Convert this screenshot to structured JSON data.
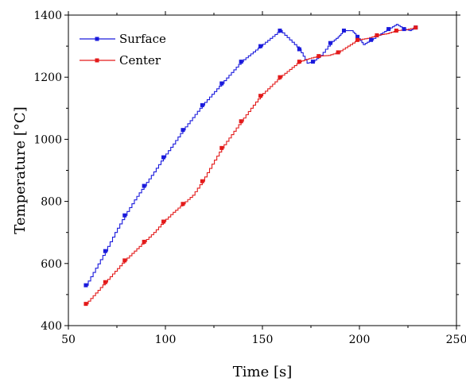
{
  "chart_data": {
    "type": "line",
    "title": "",
    "xlabel": "Time [s]",
    "ylabel": "Temperature [°C]",
    "xlim": [
      50,
      250
    ],
    "ylim": [
      400,
      1400
    ],
    "x_ticks": [
      50,
      100,
      150,
      200,
      250
    ],
    "y_ticks": [
      400,
      600,
      800,
      1000,
      1200,
      1400
    ],
    "grid": false,
    "legend_position": "top-left",
    "series": [
      {
        "name": "Surface",
        "color": "#1a1adc",
        "x": [
          59,
          64,
          69,
          74,
          79,
          84,
          89,
          94,
          99,
          104,
          109,
          114,
          119,
          124,
          129,
          134,
          139,
          144,
          149,
          154,
          159,
          164,
          169,
          173,
          176,
          180,
          185,
          189,
          192,
          196,
          199,
          202,
          206,
          211,
          215,
          219,
          223,
          226,
          229
        ],
        "y": [
          530,
          585,
          640,
          700,
          755,
          805,
          850,
          895,
          942,
          985,
          1030,
          1070,
          1110,
          1145,
          1180,
          1215,
          1250,
          1275,
          1300,
          1325,
          1350,
          1320,
          1290,
          1245,
          1250,
          1270,
          1310,
          1330,
          1350,
          1350,
          1330,
          1305,
          1320,
          1340,
          1355,
          1370,
          1355,
          1350,
          1360
        ]
      },
      {
        "name": "Center",
        "color": "#e31a1a",
        "x": [
          59,
          64,
          69,
          74,
          79,
          84,
          89,
          94,
          99,
          104,
          109,
          114,
          119,
          124,
          129,
          134,
          139,
          144,
          149,
          154,
          159,
          164,
          169,
          174,
          179,
          184,
          189,
          194,
          199,
          204,
          209,
          214,
          219,
          224,
          229
        ],
        "y": [
          470,
          505,
          540,
          575,
          610,
          640,
          670,
          700,
          735,
          765,
          792,
          820,
          865,
          920,
          972,
          1015,
          1058,
          1100,
          1140,
          1170,
          1200,
          1225,
          1250,
          1260,
          1268,
          1270,
          1280,
          1300,
          1320,
          1325,
          1335,
          1340,
          1350,
          1353,
          1360
        ]
      }
    ]
  }
}
